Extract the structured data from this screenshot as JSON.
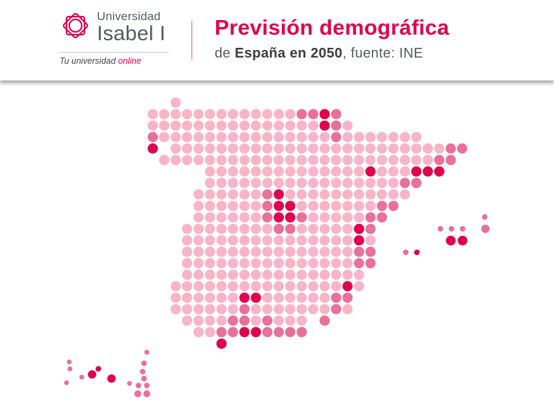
{
  "header": {
    "logo": {
      "line1": "Universidad",
      "line2": "Isabel I",
      "tagline_prefix": "Tu universidad ",
      "tagline_accent": "online",
      "icon": "rose-logo-icon"
    },
    "title": "Previsión demográfica",
    "subtitle_pre": "de ",
    "subtitle_bold": "España en 2050",
    "subtitle_post": ", fuente: INE"
  },
  "colors": {
    "light": "#f8b4c9",
    "medium": "#e8709a",
    "dark": "#e0004d",
    "brand": "#e0004d",
    "text": "#555a60"
  },
  "map": {
    "encoding": "dot grid of Spain; dot shade indicates projected demographic level (light / medium / dark)",
    "levels": [
      "light",
      "medium",
      "dark"
    ]
  }
}
